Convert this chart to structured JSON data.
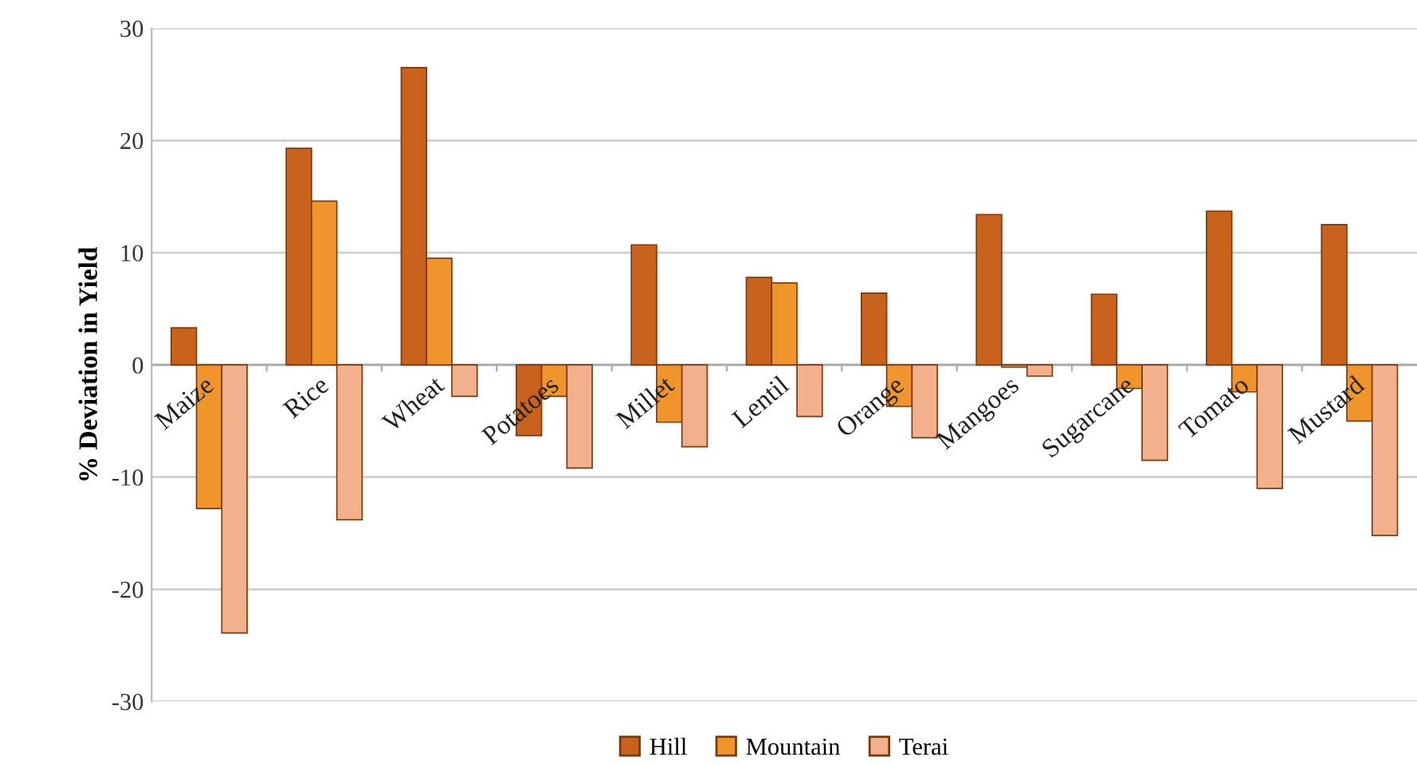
{
  "chart_data": {
    "type": "bar",
    "ylabel": "% Deviation in Yield",
    "categories": [
      "Maize",
      "Rice",
      "Wheat",
      "Potatoes",
      "Millet",
      "Lentil",
      "Orange",
      "Mangoes",
      "Sugarcane",
      "Tomato",
      "Mustard"
    ],
    "series": [
      {
        "name": "Hill",
        "color": "#c8621c",
        "values": [
          3.3,
          19.3,
          26.5,
          -6.3,
          10.7,
          7.8,
          6.4,
          13.4,
          6.3,
          13.7,
          12.5
        ]
      },
      {
        "name": "Mountain",
        "color": "#f0952c",
        "values": [
          -12.8,
          14.6,
          9.5,
          -2.8,
          -5.1,
          7.3,
          -3.7,
          -0.2,
          -2.1,
          -2.4,
          -5.0
        ]
      },
      {
        "name": "Terai",
        "color": "#f2b08c",
        "values": [
          -23.9,
          -13.8,
          -2.8,
          -9.2,
          -7.3,
          -4.6,
          -6.5,
          -1.0,
          -8.5,
          -11.0,
          -15.2
        ]
      }
    ],
    "ylim": [
      -30,
      30
    ],
    "yticks": [
      -30,
      -20,
      -10,
      0,
      10,
      20,
      30
    ],
    "grid": "y",
    "legend": "bottom"
  }
}
